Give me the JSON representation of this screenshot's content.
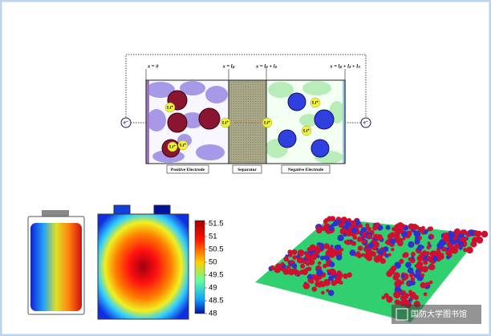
{
  "cell_diagram": {
    "positions": [
      "x = 0",
      "x = lₚ",
      "x = lₚ + lₛ",
      "x = lₚ + lₛ + lₙ"
    ],
    "electron_left": "e⁻",
    "electron_right": "e⁻",
    "ion_label": "Li⁺",
    "regions": [
      "Positive Electrode",
      "Separator",
      "Negative Electrode"
    ]
  },
  "thermal_map": {
    "colorbar_ticks": [
      51.5,
      51,
      50.5,
      50,
      49.5,
      49,
      48.5,
      48
    ]
  },
  "watermark": "国防大学图书馆"
}
